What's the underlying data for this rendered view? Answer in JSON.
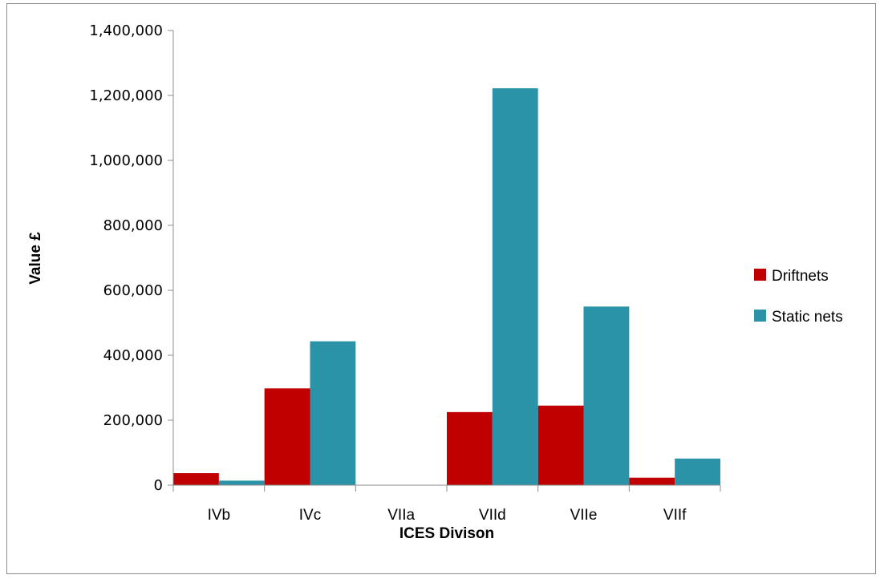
{
  "chart_data": {
    "type": "bar",
    "title": "",
    "xlabel": "ICES Divison",
    "ylabel": "Value £",
    "categories": [
      "IVb",
      "IVc",
      "VIIa",
      "VIId",
      "VIIe",
      "VIIf"
    ],
    "series": [
      {
        "name": "Driftnets",
        "color": "#c00000",
        "values": [
          37000,
          298000,
          0,
          225000,
          245000,
          23000
        ]
      },
      {
        "name": "Static nets",
        "color": "#2a93a8",
        "values": [
          14000,
          443000,
          0,
          1222000,
          550000,
          82000
        ]
      }
    ],
    "ylim": [
      0,
      1400000
    ],
    "yticks": [
      "0",
      "200,000",
      "400,000",
      "600,000",
      "800,000",
      "1,000,000",
      "1,200,000",
      "1,400,000"
    ],
    "legend_position": "right",
    "grid": false
  }
}
